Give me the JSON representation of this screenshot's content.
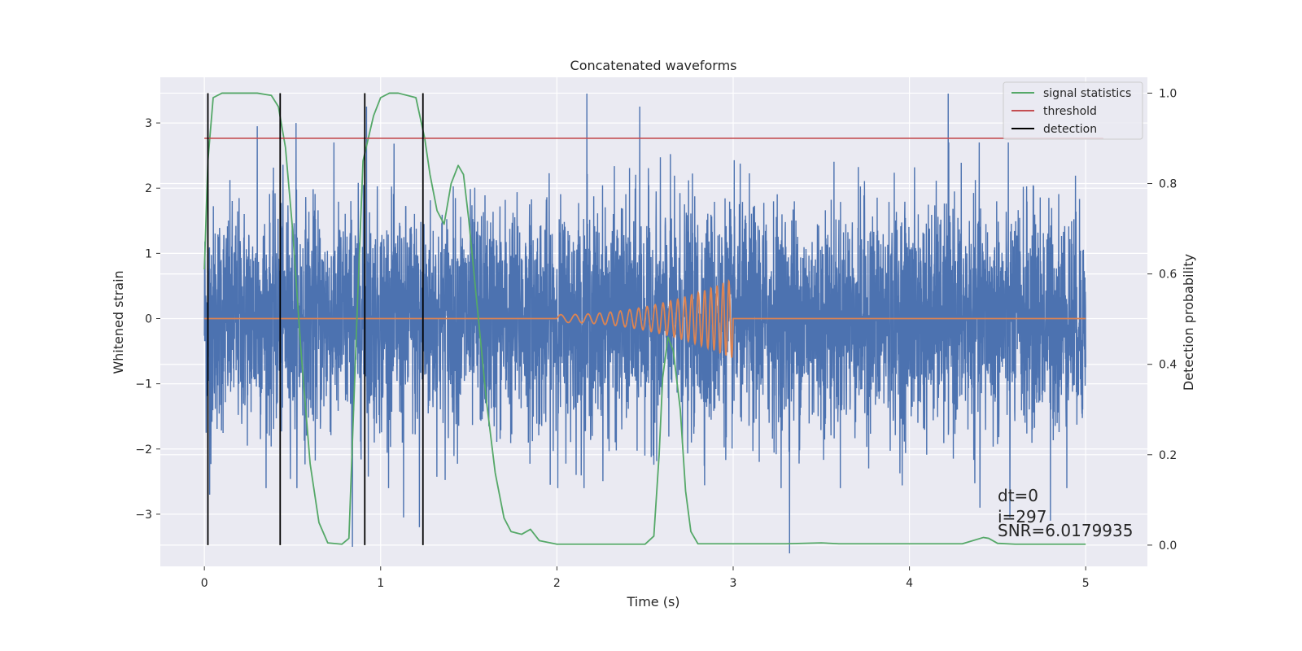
{
  "chart_data": {
    "type": "line",
    "title": "Concatenated waveforms",
    "xlabel": "Time (s)",
    "ylabel": "Whitened strain",
    "ylabel_right": "Detection probability",
    "xlim": [
      -0.25,
      5.35
    ],
    "ylim": [
      -3.8,
      3.7
    ],
    "ylim_right": [
      -0.047,
      1.035
    ],
    "x_ticks": [
      "0",
      "1",
      "2",
      "3",
      "4",
      "5"
    ],
    "y_ticks": [
      "3",
      "2",
      "1",
      "0",
      "−1",
      "−2",
      "−3"
    ],
    "y_ticks_right": [
      "1.0",
      "0.8",
      "0.6",
      "0.4",
      "0.2",
      "0.0"
    ],
    "grid": true,
    "legend": {
      "placement": "upper right",
      "entries": [
        {
          "label": "signal statistics",
          "color": "#55a868"
        },
        {
          "label": "threshold",
          "color": "#c44e52"
        },
        {
          "label": "detection",
          "color": "#000000"
        }
      ]
    },
    "series": [
      {
        "axis": "left",
        "color": "#4c72b0",
        "style": "dense noise, approx. gaussian, std 0.85, range [-3.65, 3.45]",
        "x_range": [
          0,
          5
        ],
        "spikes": [
          [
            0.03,
            -2.7
          ],
          [
            0.84,
            -3.5
          ],
          [
            0.92,
            3.25
          ],
          [
            1.13,
            -3.05
          ],
          [
            1.22,
            -3.2
          ],
          [
            2.17,
            3.45
          ],
          [
            2.47,
            3.25
          ],
          [
            3.32,
            -3.6
          ],
          [
            4.22,
            3.45
          ],
          [
            4.4,
            -2.9
          ],
          [
            4.57,
            -3.05
          ],
          [
            4.8,
            -3.1
          ],
          [
            0.3,
            2.95
          ],
          [
            0.52,
            3.0
          ]
        ]
      },
      {
        "axis": "left",
        "color": "#dd8452",
        "style": "chirp, zero outside [2, 3], amplitude rising to ~0.5",
        "chirp_start": 2.0,
        "chirp_end": 3.0,
        "chirp_peak_amplitude": 0.55
      },
      {
        "name": "signal statistics",
        "axis": "right",
        "color": "#55a868",
        "x": [
          0,
          0.02,
          0.05,
          0.1,
          0.2,
          0.3,
          0.38,
          0.42,
          0.46,
          0.5,
          0.55,
          0.6,
          0.65,
          0.7,
          0.78,
          0.82,
          0.87,
          0.9,
          0.93,
          0.96,
          1.0,
          1.05,
          1.1,
          1.2,
          1.25,
          1.28,
          1.32,
          1.36,
          1.4,
          1.44,
          1.47,
          1.5,
          1.55,
          1.6,
          1.65,
          1.7,
          1.74,
          1.8,
          1.85,
          1.9,
          2.0,
          2.5,
          2.55,
          2.58,
          2.6,
          2.63,
          2.66,
          2.7,
          2.73,
          2.76,
          2.8,
          3.3,
          3.5,
          3.6,
          4.3,
          4.42,
          4.45,
          4.5,
          4.6,
          5.0
        ],
        "values": [
          0.61,
          0.85,
          0.99,
          1.0,
          1.0,
          1.0,
          0.995,
          0.97,
          0.88,
          0.7,
          0.42,
          0.18,
          0.05,
          0.005,
          0.002,
          0.015,
          0.55,
          0.85,
          0.9,
          0.95,
          0.99,
          1.0,
          1.0,
          0.99,
          0.9,
          0.82,
          0.74,
          0.71,
          0.8,
          0.84,
          0.82,
          0.72,
          0.52,
          0.32,
          0.16,
          0.06,
          0.03,
          0.024,
          0.035,
          0.01,
          0.002,
          0.002,
          0.02,
          0.2,
          0.37,
          0.46,
          0.43,
          0.3,
          0.12,
          0.03,
          0.003,
          0.003,
          0.005,
          0.003,
          0.003,
          0.017,
          0.015,
          0.004,
          0.002,
          0.002
        ]
      },
      {
        "name": "threshold",
        "axis": "right",
        "color": "#c44e52",
        "x": [
          0,
          5.1
        ],
        "values": [
          0.9,
          0.9
        ]
      }
    ],
    "detections": [
      0.02,
      0.43,
      0.91,
      1.24
    ],
    "annotations": [
      "dt=0",
      "i=297",
      "SNR=6.0179935"
    ]
  }
}
